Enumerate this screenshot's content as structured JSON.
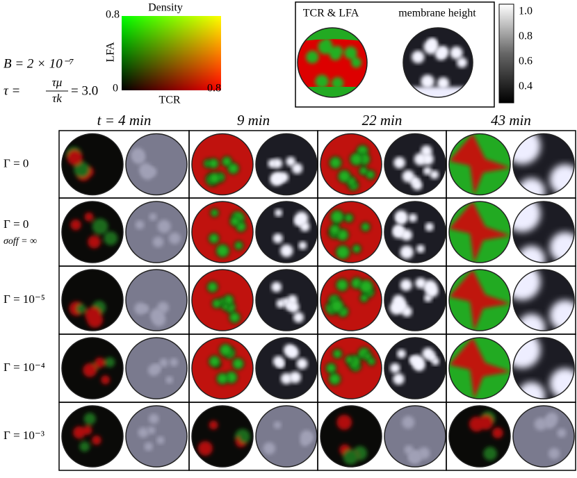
{
  "colormap": {
    "title": "Density",
    "y_label": "LFA",
    "x_label": "TCR",
    "y_max": "0.8",
    "origin": "0",
    "x_max": "0.8"
  },
  "params": {
    "B": "B = 2 × 10⁻⁷",
    "tau_lhs": "τ =",
    "tau_num": "τμ",
    "tau_den": "τk",
    "tau_rhs": "= 3.0"
  },
  "legend": {
    "left_title": "TCR & LFA",
    "right_title": "membrane height",
    "colorbar_ticks": [
      "1.0",
      "0.8",
      "0.6",
      "0.4"
    ]
  },
  "columns": [
    "t = 4 min",
    "9 min",
    "22 min",
    "43 min"
  ],
  "rows": [
    {
      "label": "Γ = 0"
    },
    {
      "label": "Γ = 0",
      "sublabel": "σoff = ∞"
    },
    {
      "label": "Γ = 10⁻⁵"
    },
    {
      "label": "Γ = 10⁻⁴"
    },
    {
      "label": "Γ = 10⁻³"
    }
  ]
}
